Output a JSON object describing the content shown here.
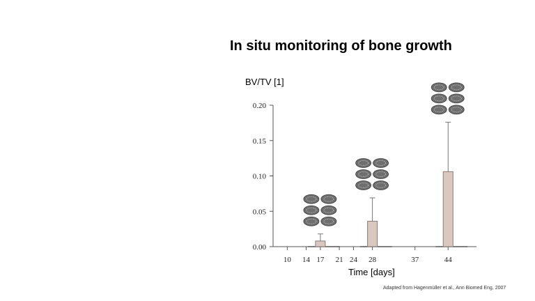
{
  "slide": {
    "title": "In situ monitoring of bone growth",
    "credit": "Adapted from Hagenmüller et al., Ann Biomed Eng, 2007"
  },
  "chart_data": {
    "type": "bar",
    "title": "",
    "ylabel": "BV/TV [1]",
    "xlabel": "Time [days]",
    "ylim": [
      0,
      0.2
    ],
    "xlim": [
      7,
      50
    ],
    "yticks": [
      "0.00",
      "0.05",
      "0.10",
      "0.15",
      "0.20"
    ],
    "ytick_values": [
      0,
      0.05,
      0.1,
      0.15,
      0.2
    ],
    "xticks": [
      "10",
      "14",
      "17",
      "21",
      "24",
      "28",
      "37",
      "44"
    ],
    "xtick_values": [
      10,
      14,
      17,
      21,
      24,
      28,
      37,
      44
    ],
    "bars": [
      {
        "x": 17,
        "value": 0.008,
        "error": 0.018
      },
      {
        "x": 28,
        "value": 0.036,
        "error": 0.069
      },
      {
        "x": 44,
        "value": 0.106,
        "error": 0.176
      }
    ],
    "bar_color": "#d8c8c0",
    "bar_edge": "#8a7b74",
    "grid": false
  }
}
